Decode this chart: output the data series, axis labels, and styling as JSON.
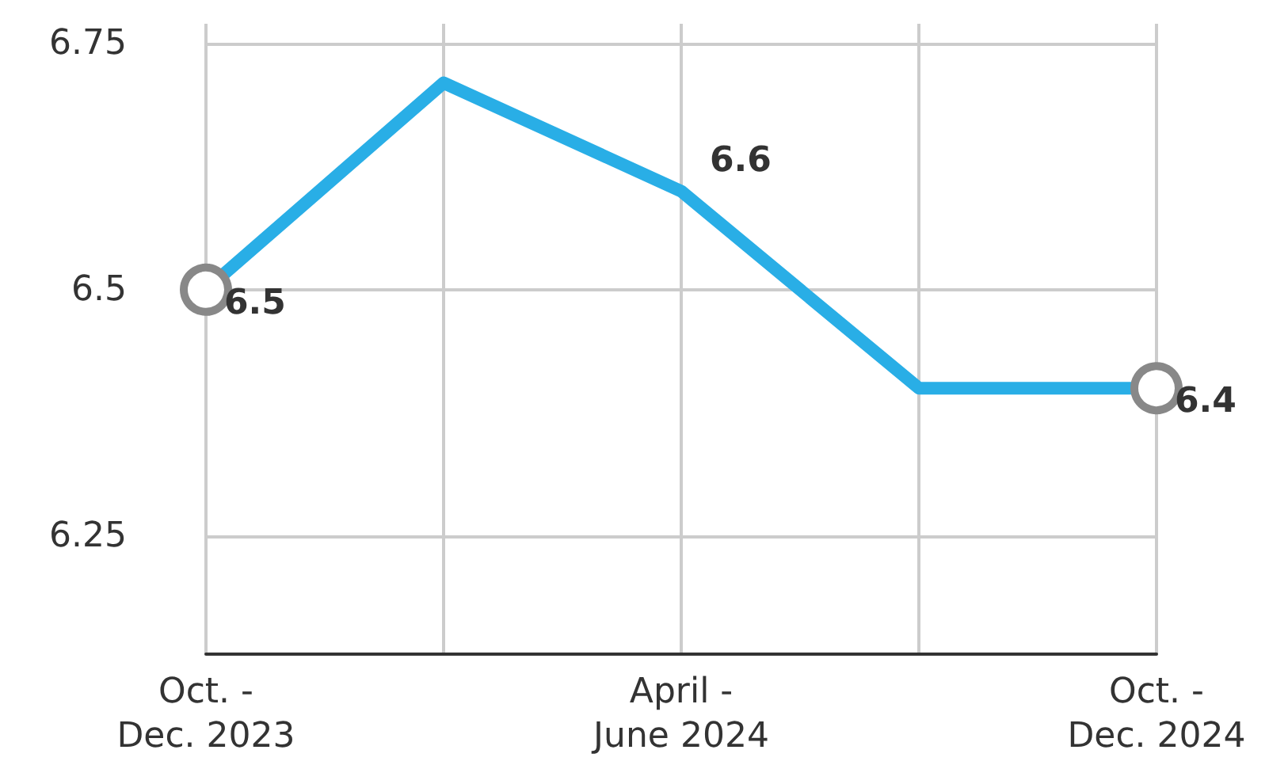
{
  "chart_data": {
    "type": "line",
    "categories": [
      "Oct. -\nDec. 2023",
      null,
      "April -\nJune 2024",
      null,
      "Oct. -\nDec. 2024"
    ],
    "series": [
      {
        "color": "#29aee6",
        "values": [
          6.5,
          6.71,
          6.6,
          6.4,
          6.4
        ],
        "value_labels": [
          "6.5",
          null,
          "6.6",
          null,
          "6.4"
        ]
      }
    ],
    "ylim": [
      6.13,
      6.77
    ],
    "yticks": [
      6.25,
      6.5,
      6.75
    ],
    "grid": true
  }
}
